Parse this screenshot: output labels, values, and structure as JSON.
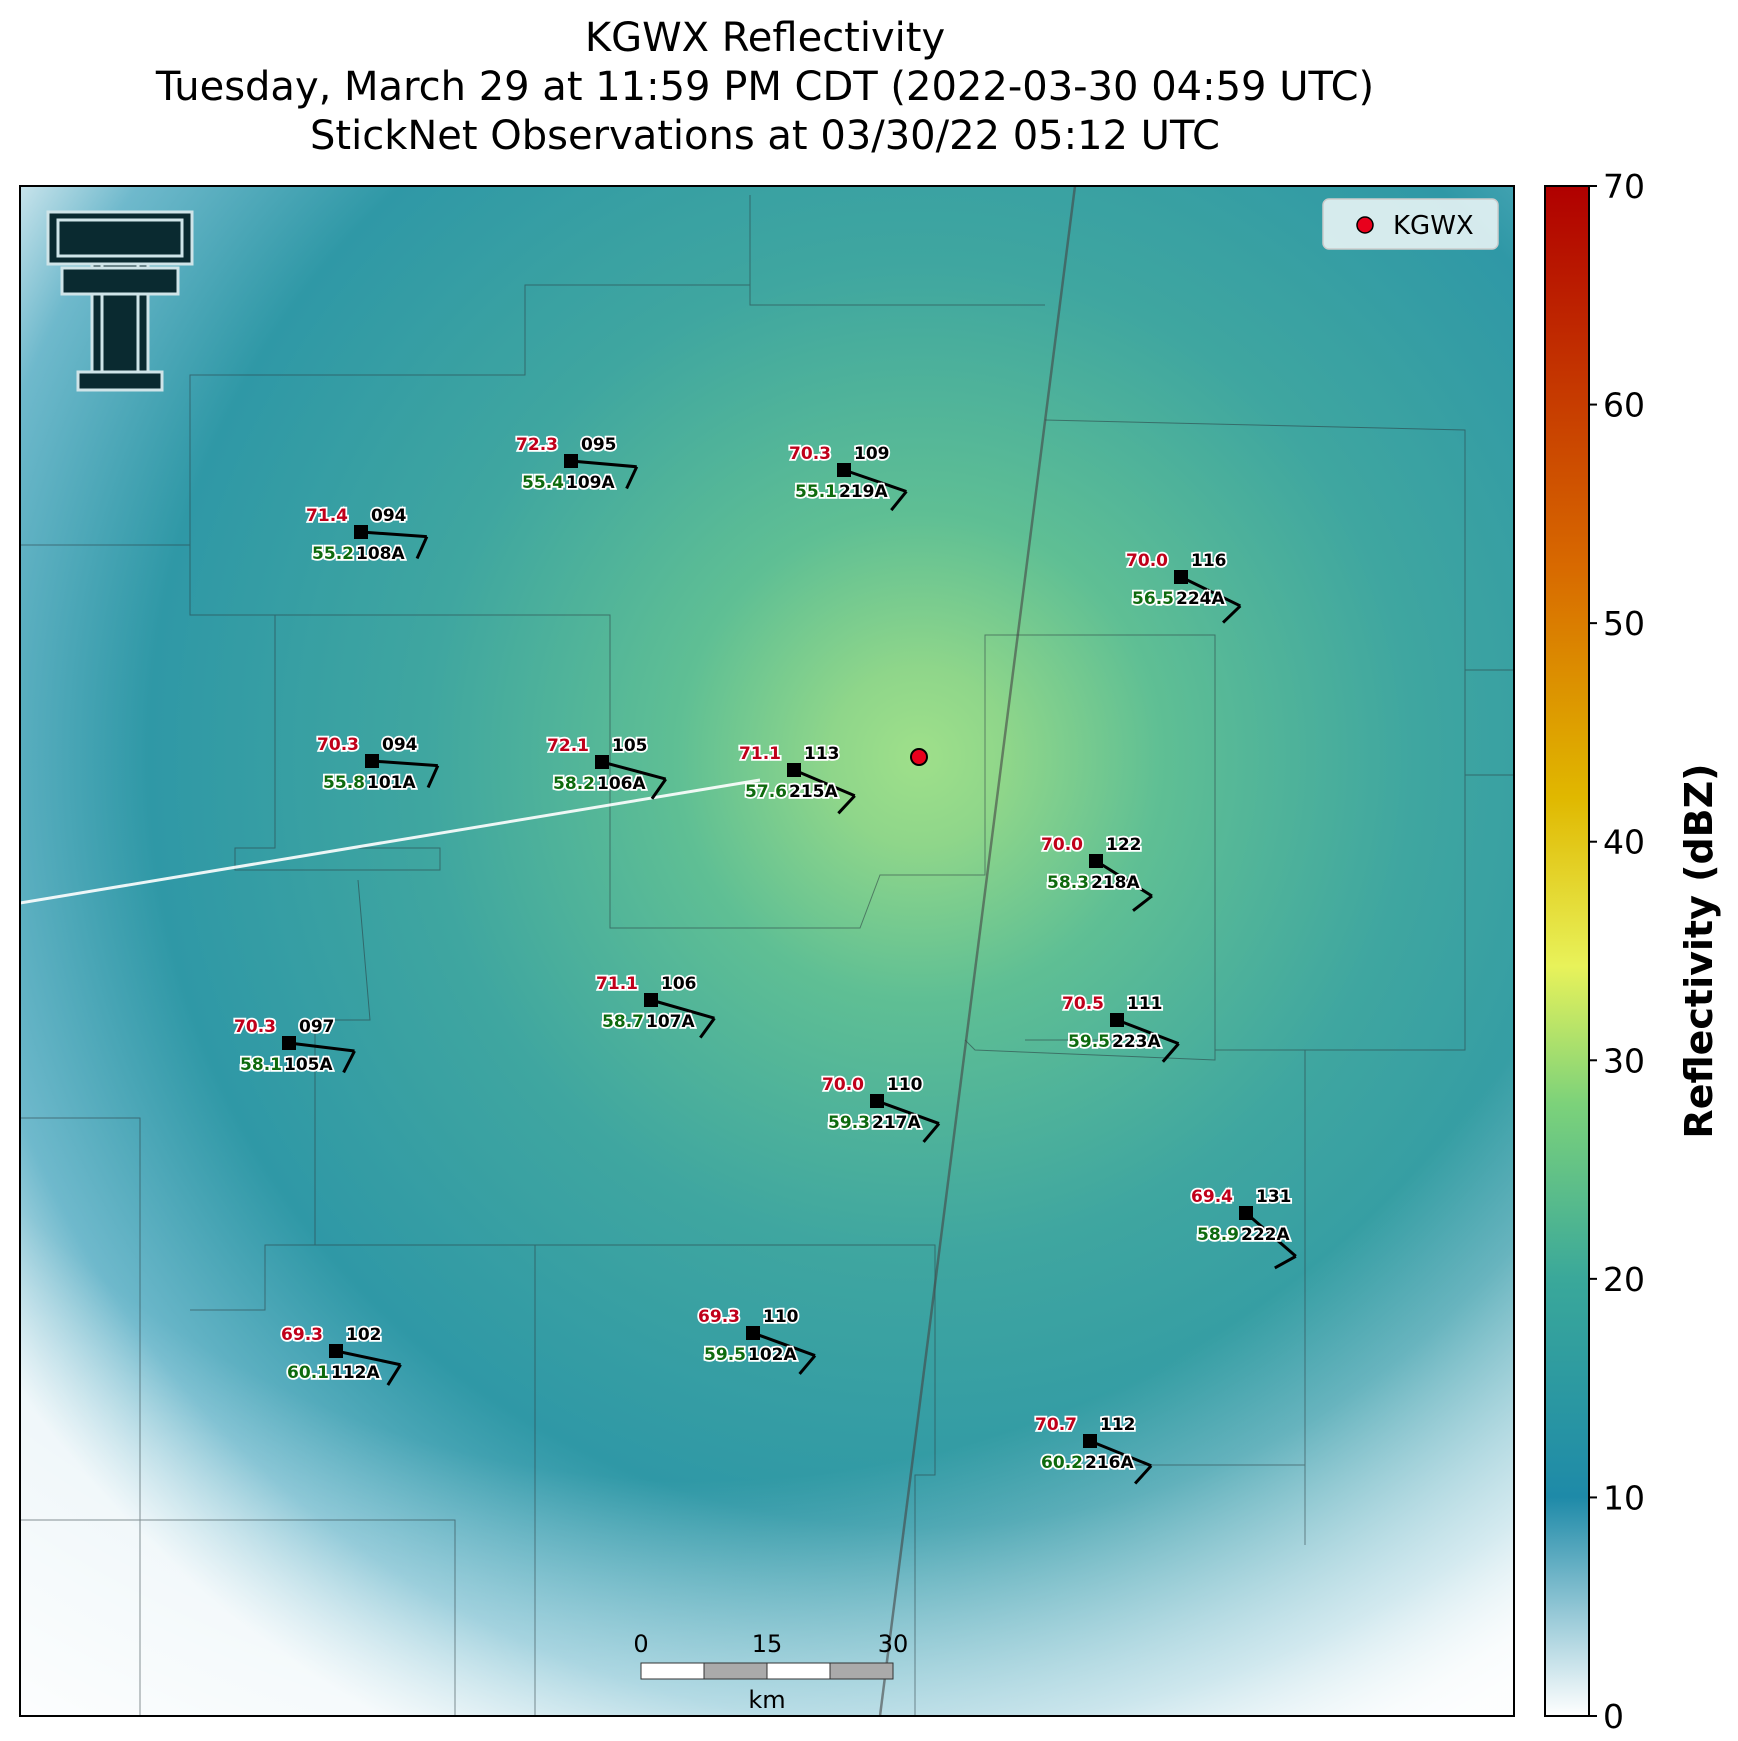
{
  "title": {
    "line1": "KGWX Reflectivity",
    "line2": "Tuesday, March 29 at 11:59 PM CDT (2022-03-30 04:59 UTC)",
    "line3": "StickNet Observations at 03/30/22 05:12 UTC"
  },
  "radar": {
    "name": "KGWX",
    "marker_color": "#e8001c"
  },
  "legend": {
    "label": "KGWX"
  },
  "colorbar": {
    "label": "Reflectivity (dBZ)",
    "ticks": [
      "0",
      "10",
      "20",
      "30",
      "40",
      "50",
      "60",
      "70"
    ],
    "stops": [
      "#ffffff",
      "#1e8aa8",
      "#3aa89a",
      "#7cd27a",
      "#e8f25a",
      "#e0b800",
      "#d86a00",
      "#b00000"
    ]
  },
  "scalebar": {
    "labels": [
      "0",
      "15",
      "30"
    ],
    "unit": "km"
  },
  "stations": [
    {
      "temp": "72.3",
      "dew": "55.4",
      "dir": "095",
      "id": "109A"
    },
    {
      "temp": "70.3",
      "dew": "55.1",
      "dir": "109",
      "id": "219A"
    },
    {
      "temp": "71.4",
      "dew": "55.2",
      "dir": "094",
      "id": "108A"
    },
    {
      "temp": "70.0",
      "dew": "56.5",
      "dir": "116",
      "id": "224A"
    },
    {
      "temp": "70.3",
      "dew": "55.8",
      "dir": "094",
      "id": "101A"
    },
    {
      "temp": "72.1",
      "dew": "58.2",
      "dir": "105",
      "id": "106A"
    },
    {
      "temp": "71.1",
      "dew": "57.6",
      "dir": "113",
      "id": "215A"
    },
    {
      "temp": "70.0",
      "dew": "58.3",
      "dir": "122",
      "id": "218A"
    },
    {
      "temp": "71.1",
      "dew": "58.7",
      "dir": "106",
      "id": "107A"
    },
    {
      "temp": "70.5",
      "dew": "59.5",
      "dir": "111",
      "id": "223A"
    },
    {
      "temp": "70.3",
      "dew": "58.1",
      "dir": "097",
      "id": "105A"
    },
    {
      "temp": "70.0",
      "dew": "59.3",
      "dir": "110",
      "id": "217A"
    },
    {
      "temp": "69.4",
      "dew": "58.9",
      "dir": "131",
      "id": "222A"
    },
    {
      "temp": "69.3",
      "dew": "60.1",
      "dir": "102",
      "id": "112A"
    },
    {
      "temp": "69.3",
      "dew": "59.5",
      "dir": "110",
      "id": "102A"
    },
    {
      "temp": "70.7",
      "dew": "60.2",
      "dir": "112",
      "id": "216A"
    }
  ]
}
